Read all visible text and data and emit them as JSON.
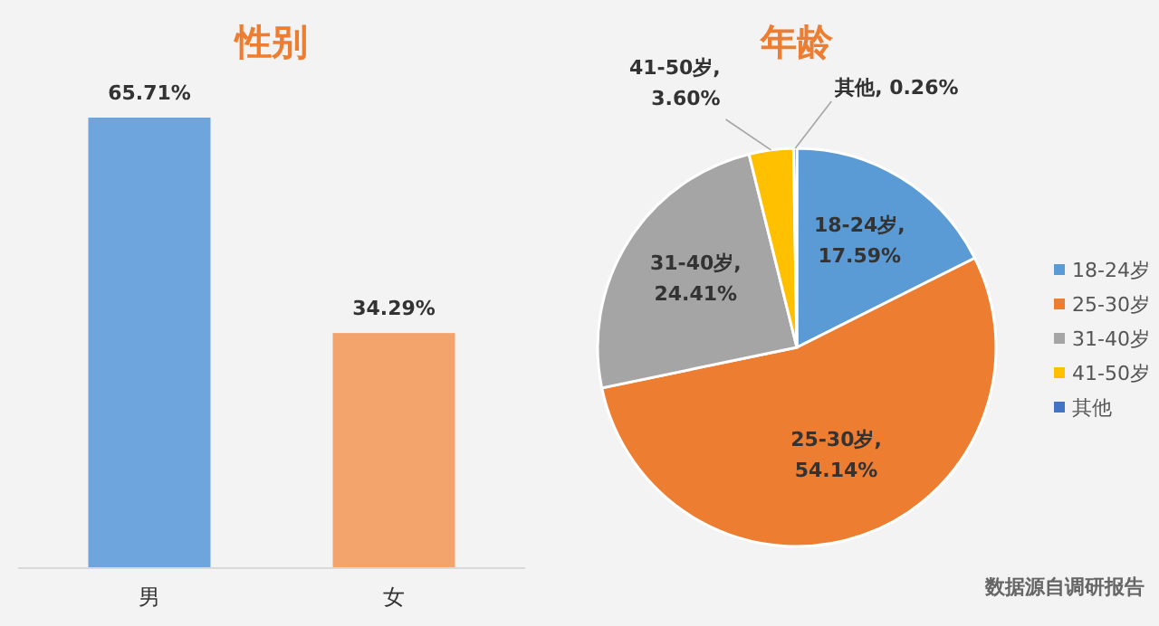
{
  "chart_data": [
    {
      "type": "bar",
      "title": "性别",
      "categories": [
        "男",
        "女"
      ],
      "values": [
        65.71,
        34.29
      ],
      "colors": [
        "#6ea5dc",
        "#f3a46c"
      ],
      "value_labels": [
        "65.71%",
        "34.29%"
      ]
    },
    {
      "type": "pie",
      "title": "年龄",
      "categories": [
        "18-24岁",
        "25-30岁",
        "31-40岁",
        "41-50岁",
        "其他"
      ],
      "values": [
        17.59,
        54.14,
        24.41,
        3.6,
        0.26
      ],
      "colors": [
        "#5b9bd5",
        "#ed7d31",
        "#a5a5a5",
        "#ffc000",
        "#4472c4"
      ],
      "value_labels": [
        "18-24岁,\n17.59%",
        "25-30岁,\n54.14%",
        "31-40岁,\n24.41%",
        "41-50岁,\n3.60%",
        "其他, 0.26%"
      ],
      "legend": "right",
      "annotations": [
        "数据源自调研报告"
      ]
    }
  ]
}
